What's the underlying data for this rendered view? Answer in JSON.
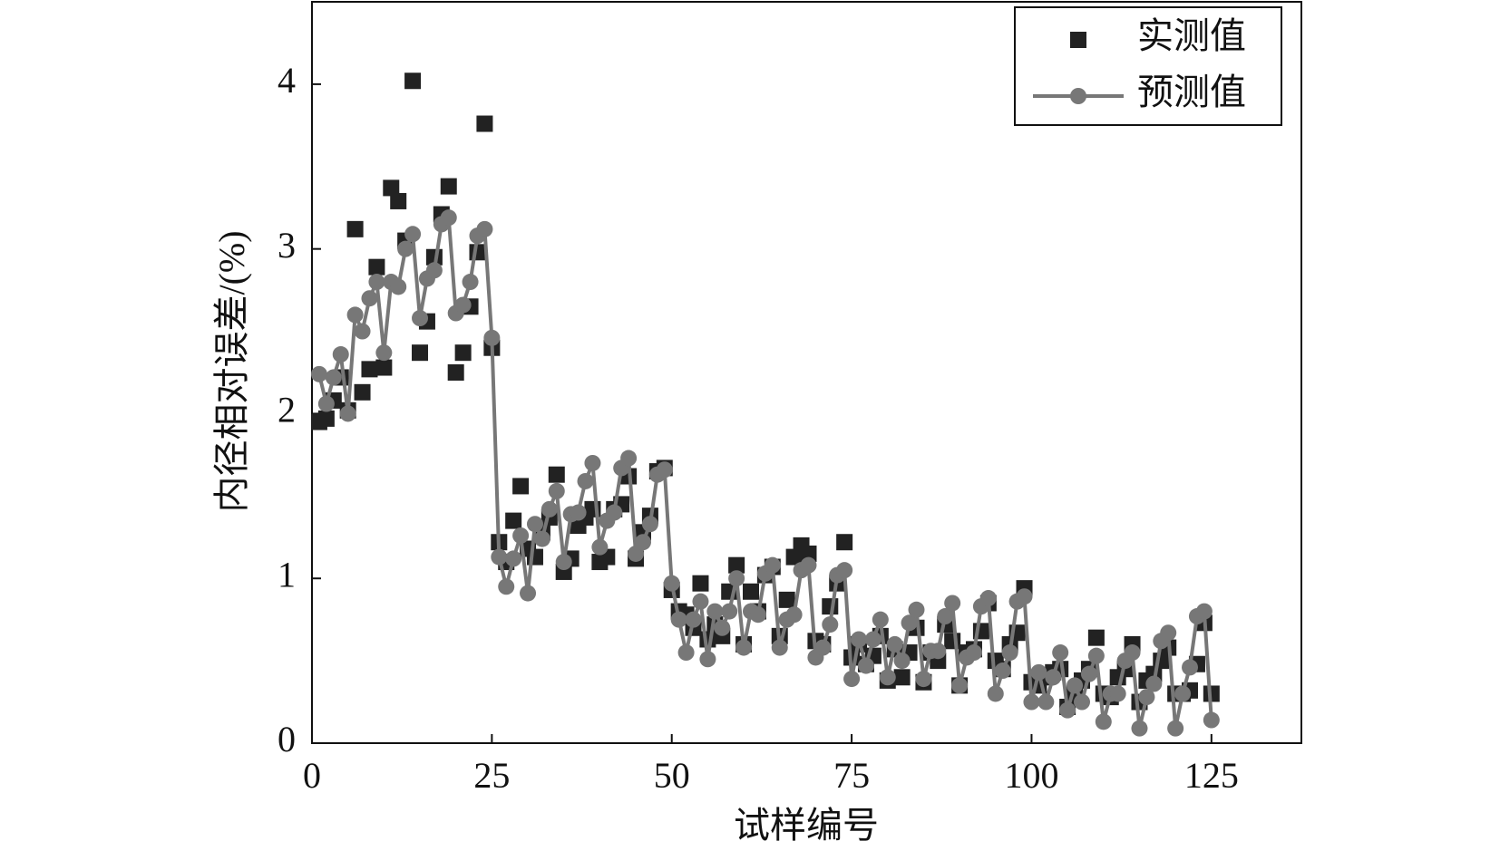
{
  "chart_data": {
    "type": "line",
    "x_label": "试样编号",
    "y_label": "内径相对误差/(%)",
    "xlim": [
      0,
      137.5
    ],
    "ylim": [
      0,
      4.5
    ],
    "xticks": [
      0,
      25,
      50,
      75,
      100,
      125
    ],
    "yticks": [
      0,
      1,
      2,
      3,
      4
    ],
    "grid": false,
    "legend": "upper right",
    "x": [
      1,
      2,
      3,
      4,
      5,
      6,
      7,
      8,
      9,
      10,
      11,
      12,
      13,
      14,
      15,
      16,
      17,
      18,
      19,
      20,
      21,
      22,
      23,
      24,
      25,
      26,
      27,
      28,
      29,
      30,
      31,
      32,
      33,
      34,
      35,
      36,
      37,
      38,
      39,
      40,
      41,
      42,
      43,
      44,
      45,
      46,
      47,
      48,
      49,
      50,
      51,
      52,
      53,
      54,
      55,
      56,
      57,
      58,
      59,
      60,
      61,
      62,
      63,
      64,
      65,
      66,
      67,
      68,
      69,
      70,
      71,
      72,
      73,
      74,
      75,
      76,
      77,
      78,
      79,
      80,
      81,
      82,
      83,
      84,
      85,
      86,
      87,
      88,
      89,
      90,
      91,
      92,
      93,
      94,
      95,
      96,
      97,
      98,
      99,
      100,
      101,
      102,
      103,
      104,
      105,
      106,
      107,
      108,
      109,
      110,
      111,
      112,
      113,
      114,
      115,
      116,
      117,
      118,
      119,
      120,
      121,
      122,
      123,
      124,
      125
    ],
    "series": [
      {
        "name": "实测值",
        "color": "#222222",
        "marker": "square",
        "line": false,
        "values": [
          1.95,
          1.97,
          2.08,
          2.22,
          2.02,
          3.12,
          2.13,
          2.27,
          2.89,
          2.28,
          3.37,
          3.29,
          3.05,
          4.02,
          2.37,
          2.56,
          2.95,
          3.21,
          3.38,
          2.25,
          2.37,
          2.65,
          2.98,
          3.76,
          2.4,
          1.22,
          1.1,
          1.35,
          1.56,
          1.18,
          1.13,
          1.28,
          1.37,
          1.63,
          1.04,
          1.12,
          1.32,
          1.37,
          1.42,
          1.1,
          1.13,
          1.42,
          1.45,
          1.62,
          1.12,
          1.28,
          1.38,
          1.65,
          1.67,
          0.93,
          0.8,
          0.78,
          0.7,
          0.97,
          0.63,
          0.72,
          0.65,
          0.92,
          1.08,
          0.6,
          0.92,
          0.8,
          1.02,
          1.07,
          0.65,
          0.87,
          1.13,
          1.2,
          1.15,
          0.62,
          0.6,
          0.83,
          0.97,
          1.22,
          0.52,
          0.6,
          0.48,
          0.53,
          0.65,
          0.38,
          0.57,
          0.4,
          0.55,
          0.7,
          0.37,
          0.55,
          0.5,
          0.72,
          0.62,
          0.35,
          0.55,
          0.57,
          0.68,
          0.85,
          0.5,
          0.45,
          0.6,
          0.67,
          0.94,
          0.37,
          0.35,
          0.4,
          0.43,
          0.45,
          0.22,
          0.3,
          0.38,
          0.45,
          0.64,
          0.3,
          0.28,
          0.4,
          0.45,
          0.6,
          0.25,
          0.38,
          0.42,
          0.5,
          0.58,
          0.3,
          0.3,
          0.32,
          0.48,
          0.73,
          0.3
        ]
      },
      {
        "name": "预测值",
        "color": "#777777",
        "marker": "circle",
        "line": true,
        "values": [
          2.24,
          2.06,
          2.22,
          2.36,
          2.0,
          2.6,
          2.5,
          2.7,
          2.8,
          2.37,
          2.8,
          2.77,
          3.0,
          3.09,
          2.58,
          2.82,
          2.87,
          3.15,
          3.19,
          2.61,
          2.66,
          2.8,
          3.08,
          3.12,
          2.46,
          1.13,
          0.95,
          1.12,
          1.26,
          0.91,
          1.33,
          1.24,
          1.42,
          1.53,
          1.1,
          1.39,
          1.4,
          1.59,
          1.7,
          1.19,
          1.35,
          1.4,
          1.67,
          1.73,
          1.15,
          1.22,
          1.33,
          1.63,
          1.66,
          0.97,
          0.75,
          0.55,
          0.75,
          0.86,
          0.51,
          0.8,
          0.7,
          0.8,
          1.0,
          0.58,
          0.8,
          0.78,
          1.03,
          1.08,
          0.58,
          0.75,
          0.78,
          1.05,
          1.08,
          0.52,
          0.58,
          0.72,
          1.02,
          1.05,
          0.39,
          0.63,
          0.47,
          0.63,
          0.75,
          0.4,
          0.6,
          0.5,
          0.73,
          0.81,
          0.39,
          0.56,
          0.56,
          0.77,
          0.85,
          0.35,
          0.52,
          0.55,
          0.83,
          0.88,
          0.3,
          0.44,
          0.55,
          0.86,
          0.89,
          0.25,
          0.43,
          0.25,
          0.4,
          0.55,
          0.2,
          0.35,
          0.25,
          0.42,
          0.53,
          0.13,
          0.3,
          0.3,
          0.5,
          0.55,
          0.09,
          0.28,
          0.36,
          0.62,
          0.67,
          0.09,
          0.3,
          0.46,
          0.77,
          0.8,
          0.14
        ]
      }
    ]
  }
}
